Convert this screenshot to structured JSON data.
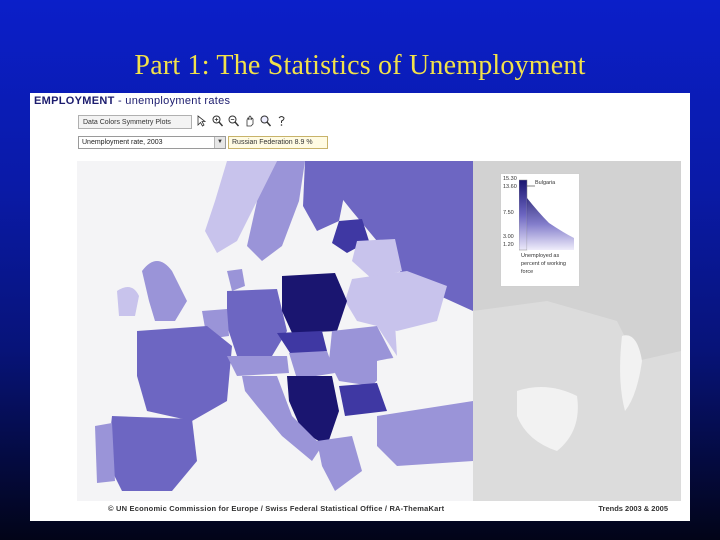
{
  "slide": {
    "title": "Part 1: The Statistics of Unemployment"
  },
  "panel": {
    "title_bold": "EMPLOYMENT",
    "title_rest": " - unemployment rates",
    "tabs_label": "Data  Colors  Symmetry  Plots",
    "toolbar_icons": [
      "pointer-icon",
      "zoom-in-icon",
      "zoom-out-icon",
      "pan-icon",
      "search-icon",
      "help-icon"
    ],
    "dropdown_value": "Unemployment rate, 2003",
    "readout_value": "Russian Federation 8.9 %",
    "footer_left": "© UN Economic Commission for Europe / Swiss Federal Statistical Office / RA-ThemaKart",
    "footer_right": "Trends 2003 & 2005"
  },
  "legend": {
    "ticks": [
      "15.30",
      "13.60",
      "7.50",
      "3.00",
      "1.20"
    ],
    "marker_label": "Bulgaria",
    "caption": "Unemployed as percent of working force"
  },
  "colors": {
    "title": "#f2e14a",
    "sea": "#f4f4f6",
    "outside_region": "#d2d2d2",
    "level_1": "#c8c3ec",
    "level_2": "#9a94d8",
    "level_3": "#6d66c2",
    "level_4": "#3f38a3",
    "level_5": "#1a1570"
  }
}
